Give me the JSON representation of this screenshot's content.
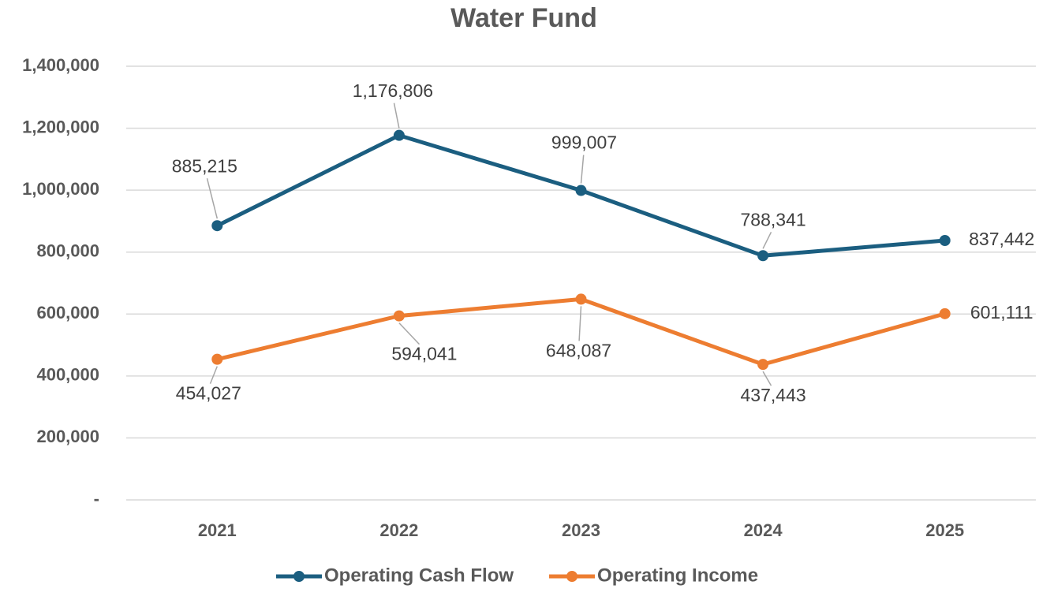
{
  "chart_data": {
    "type": "line",
    "title": "Water Fund",
    "categories": [
      "2021",
      "2022",
      "2023",
      "2024",
      "2025"
    ],
    "series": [
      {
        "name": "Operating Cash Flow",
        "color": "#1b5e80",
        "values": [
          885215,
          1176806,
          999007,
          788341,
          837442
        ],
        "value_labels": [
          "885,215",
          "1,176,806",
          "999,007",
          "788,341",
          "837,442"
        ]
      },
      {
        "name": "Operating Income",
        "color": "#ed7d31",
        "values": [
          454027,
          594041,
          648087,
          437443,
          601111
        ],
        "value_labels": [
          "454,027",
          "594,041",
          "648,087",
          "437,443",
          "601,111"
        ]
      }
    ],
    "ylim": [
      0,
      1400000
    ],
    "yticks": [
      {
        "value": 0,
        "label": "-"
      },
      {
        "value": 200000,
        "label": "200,000"
      },
      {
        "value": 400000,
        "label": "400,000"
      },
      {
        "value": 600000,
        "label": "600,000"
      },
      {
        "value": 800000,
        "label": "800,000"
      },
      {
        "value": 1000000,
        "label": "1,000,000"
      },
      {
        "value": 1200000,
        "label": "1,200,000"
      },
      {
        "value": 1400000,
        "label": "1,400,000"
      }
    ],
    "grid": true,
    "legend": "bottom"
  }
}
